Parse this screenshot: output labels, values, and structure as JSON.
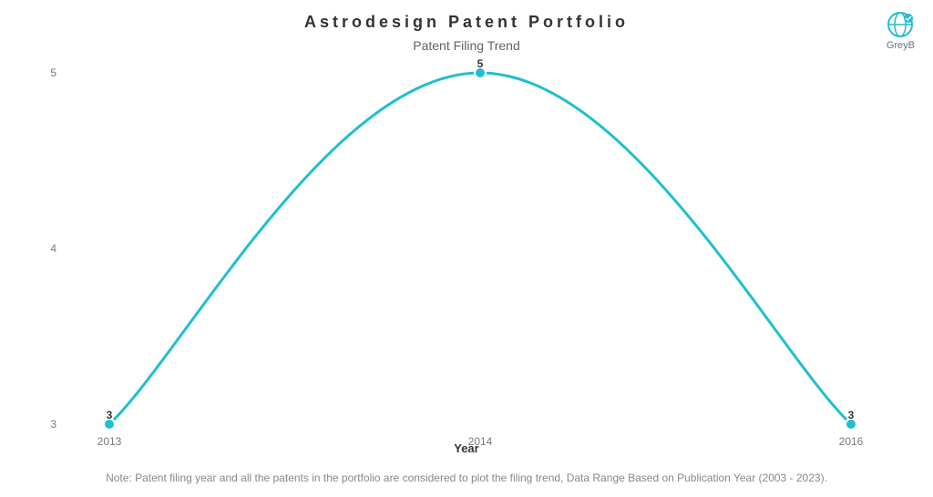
{
  "chart": {
    "type": "line",
    "title": "Astrodesign Patent Portfolio",
    "subtitle": "Patent Filing Trend",
    "xaxis_label": "Year",
    "background_color": "#ffffff",
    "line_color": "#1fbfcf",
    "line_width": 3,
    "marker_fill": "#1fbfcf",
    "marker_stroke": "#ffffff",
    "marker_radius": 6,
    "title_fontsize": 18,
    "subtitle_fontsize": 14,
    "label_fontsize": 12,
    "title_color": "#333333",
    "subtitle_color": "#636363",
    "tick_color": "#7a7a7a",
    "ylim": [
      3,
      5
    ],
    "ytick_positions": [
      3,
      4,
      5
    ],
    "x_categories": [
      "2013",
      "2014",
      "2016"
    ],
    "values": [
      3,
      5,
      3
    ],
    "point_labels": [
      "3",
      "5",
      "3"
    ]
  },
  "logo": {
    "text": "GreyB",
    "accent_color": "#1fbfcf"
  },
  "note": "Note: Patent filing year and all the patents in the portfolio are considered to plot the filing trend, Data Range Based on Publication Year (2003 - 2023)."
}
